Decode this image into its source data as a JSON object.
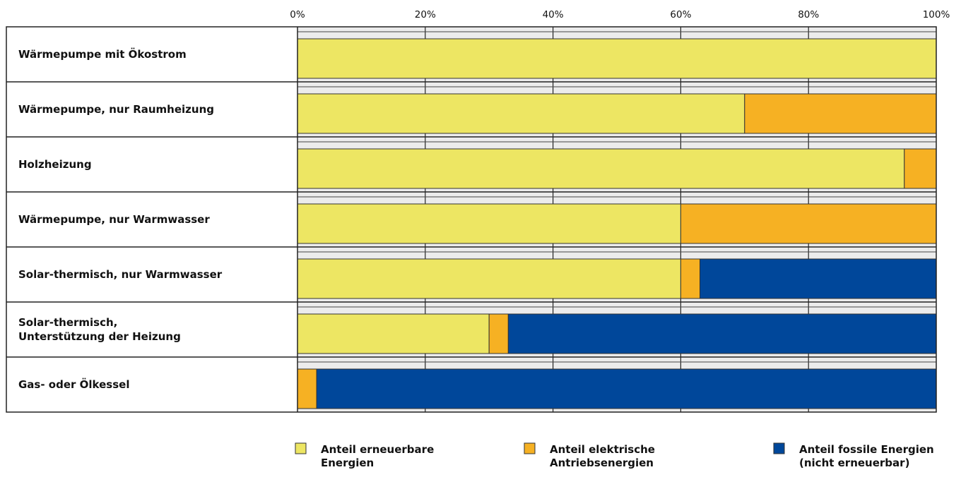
{
  "chart_data": {
    "type": "bar",
    "stacked": true,
    "orientation": "horizontal",
    "xlim": [
      0,
      100
    ],
    "x_ticks": [
      "0%",
      "20%",
      "40%",
      "60%",
      "80%",
      "100%"
    ],
    "categories": [
      [
        "Wärmepumpe mit Ökostrom"
      ],
      [
        "Wärmepumpe, nur Raumheizung"
      ],
      [
        "Holzheizung"
      ],
      [
        "Wärmepumpe, nur Warmwasser"
      ],
      [
        "Solar-thermisch, nur Warmwasser"
      ],
      [
        "Solar-thermisch,",
        "Unterstützung der Heizung"
      ],
      [
        "Gas- oder Ölkessel"
      ]
    ],
    "series": [
      {
        "name": [
          "Anteil erneuerbare",
          "Energien"
        ],
        "color": "#EDE663",
        "values": [
          100,
          70,
          95,
          60,
          60,
          30,
          0
        ]
      },
      {
        "name": [
          "Anteil elektrische",
          "Antriebsenergien"
        ],
        "color": "#F6B123",
        "values": [
          0,
          30,
          5,
          40,
          3,
          3,
          3
        ]
      },
      {
        "name": [
          "Anteil fossile Energien",
          "(nicht erneuerbar)"
        ],
        "color": "#00479A",
        "values": [
          0,
          0,
          0,
          0,
          37,
          67,
          97
        ]
      }
    ],
    "legend_position": "bottom",
    "grid": true
  }
}
